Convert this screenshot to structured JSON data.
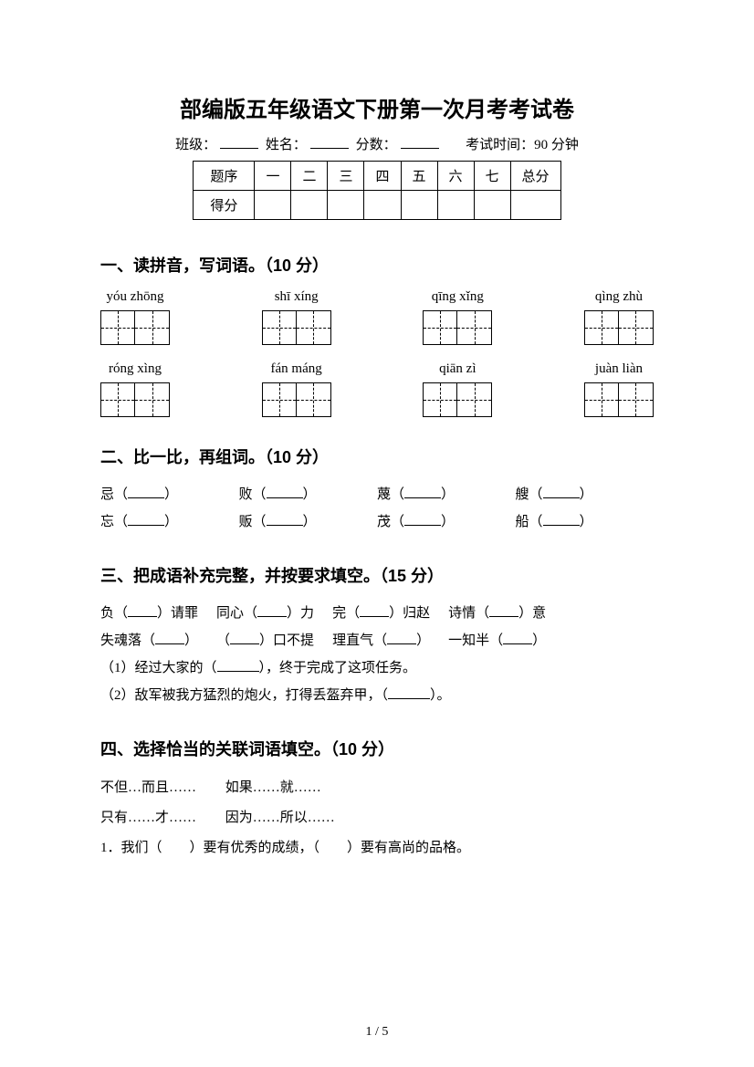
{
  "title": "部编版五年级语文下册第一次月考考试卷",
  "info": {
    "class_label": "班级：",
    "name_label": "姓名：",
    "score_label": "分数：",
    "time_label": "考试时间：90 分钟"
  },
  "score_table": {
    "header": [
      "题序",
      "一",
      "二",
      "三",
      "四",
      "五",
      "六",
      "七",
      "总分"
    ],
    "row2_label": "得分"
  },
  "section1": {
    "title": "一、读拼音，写词语。（10 分）",
    "row1": [
      {
        "pinyin": "yóu zhōng",
        "cells": 2
      },
      {
        "pinyin": "shī xíng",
        "cells": 2
      },
      {
        "pinyin": "qīng xǐng",
        "cells": 2
      },
      {
        "pinyin": "qìng zhù",
        "cells": 2
      }
    ],
    "row2": [
      {
        "pinyin": "róng xìng",
        "cells": 2
      },
      {
        "pinyin": "fán máng",
        "cells": 2
      },
      {
        "pinyin": "qiān zì",
        "cells": 2
      },
      {
        "pinyin": "juàn liàn",
        "cells": 2
      }
    ]
  },
  "section2": {
    "title": "二、比一比，再组词。（10 分）",
    "items": [
      "忌（",
      "败（",
      "蔑（",
      "艘（",
      "忘（",
      "贩（",
      "茂（",
      "船（"
    ]
  },
  "section3": {
    "title": "三、把成语补充完整，并按要求填空。（15 分）",
    "line1": [
      {
        "pre": "负（",
        "post": "）请罪"
      },
      {
        "pre": "同心（",
        "post": "）力"
      },
      {
        "pre": "完（",
        "post": "）归赵"
      },
      {
        "pre": "诗情（",
        "post": "）意"
      }
    ],
    "line2": [
      {
        "pre": "失魂落（",
        "post": "）"
      },
      {
        "pre": "（",
        "post": "）口不提"
      },
      {
        "pre": "理直气（",
        "post": "）"
      },
      {
        "pre": "一知半（",
        "post": "）"
      }
    ],
    "q1_pre": "（1）经过大家的（",
    "q1_post": "），终于完成了这项任务。",
    "q2_pre": "（2）敌军被我方猛烈的炮火，打得丢盔弃甲，（",
    "q2_post": "）。"
  },
  "section4": {
    "title": "四、选择恰当的关联词语填空。（10 分）",
    "options_row1": [
      "不但…而且……",
      "如果……就……"
    ],
    "options_row2": [
      "只有……才……",
      "因为……所以……"
    ],
    "q1": "1．我们（　　）要有优秀的成绩，（　　）要有高尚的品格。"
  },
  "page_num": "1 / 5"
}
